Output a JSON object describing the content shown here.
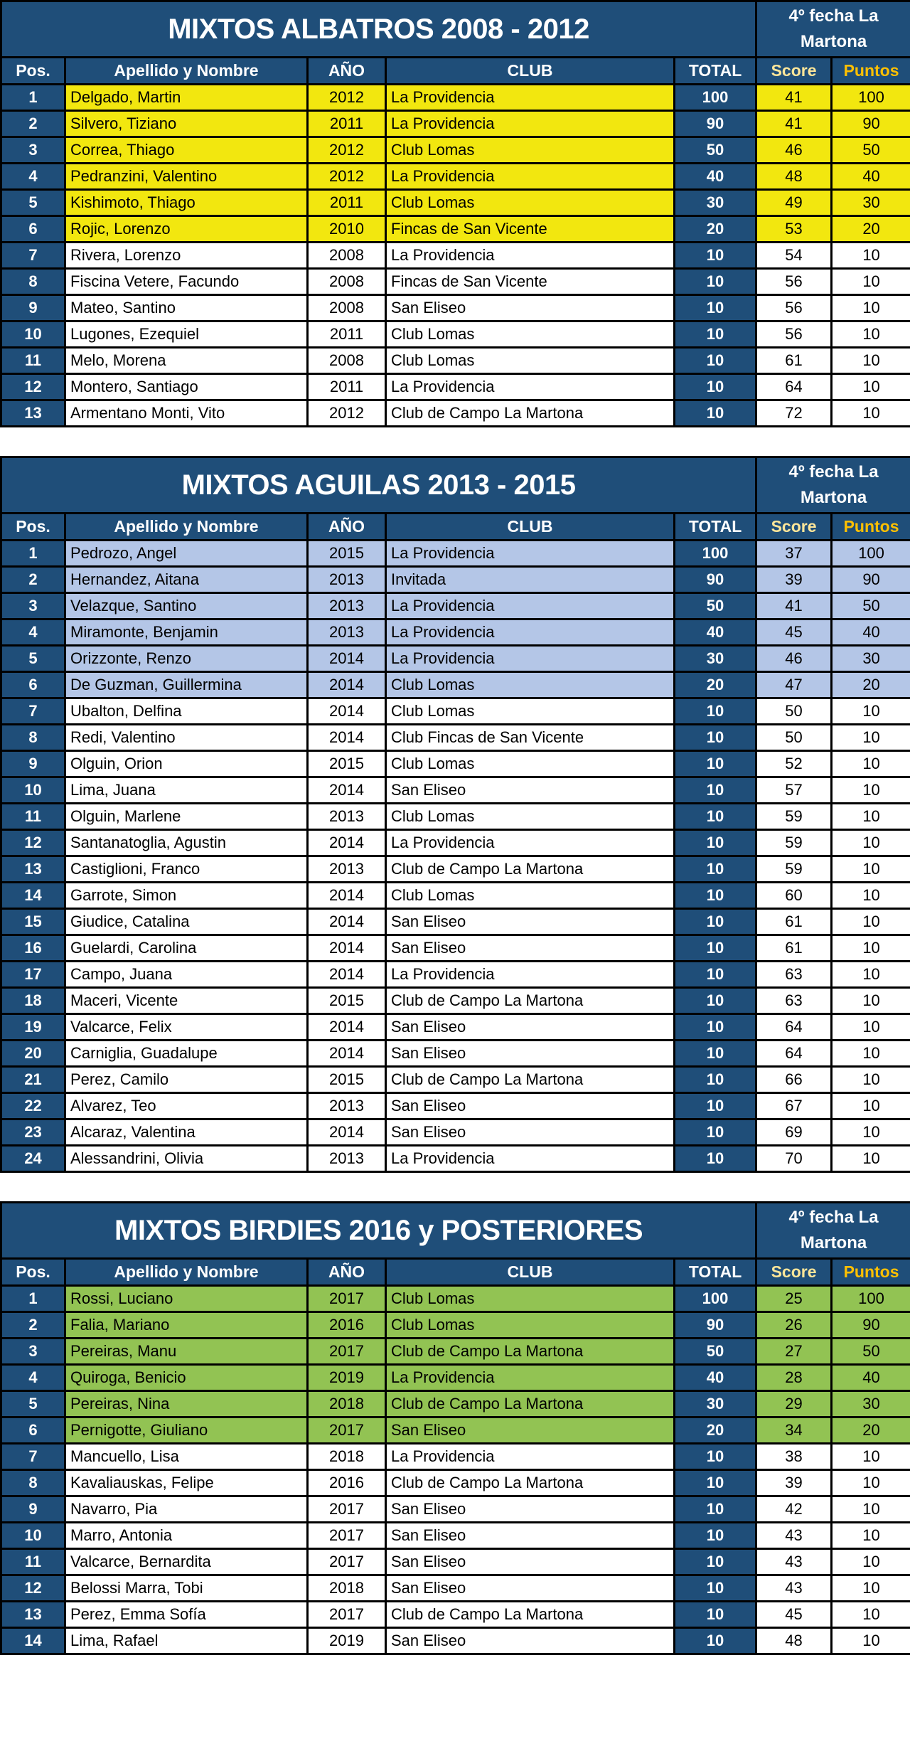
{
  "headers": {
    "pos": "Pos.",
    "name": "Apellido y Nombre",
    "year": "AÑO",
    "club": "CLUB",
    "total": "TOTAL",
    "score": "Score",
    "puntos": "Puntos"
  },
  "colors": {
    "navy": "#1f4e79",
    "albatros_highlight": "#f2e70f",
    "aguilas_highlight": "#b4c6e7",
    "birdies_highlight": "#92c353",
    "score_header": "#ffe699",
    "puntos_header": "#ffc000"
  },
  "tables": [
    {
      "title": "MIXTOS ALBATROS 2008 - 2012",
      "fecha": "4º fecha La Martona",
      "highlight": "#f2e70f",
      "rows": [
        [
          "1",
          "Delgado, Martin",
          "2012",
          "La Providencia",
          "100",
          "41",
          "100"
        ],
        [
          "2",
          "Silvero, Tiziano",
          "2011",
          "La Providencia",
          "90",
          "41",
          "90"
        ],
        [
          "3",
          "Correa, Thiago",
          "2012",
          "Club Lomas",
          "50",
          "46",
          "50"
        ],
        [
          "4",
          "Pedranzini, Valentino",
          "2012",
          "La Providencia",
          "40",
          "48",
          "40"
        ],
        [
          "5",
          "Kishimoto, Thiago",
          "2011",
          "Club Lomas",
          "30",
          "49",
          "30"
        ],
        [
          "6",
          "Rojic, Lorenzo",
          "2010",
          "Fincas de San Vicente",
          "20",
          "53",
          "20"
        ],
        [
          "7",
          "Rivera, Lorenzo",
          "2008",
          "La Providencia",
          "10",
          "54",
          "10"
        ],
        [
          "8",
          "Fiscina Vetere, Facundo",
          "2008",
          "Fincas de San Vicente",
          "10",
          "56",
          "10"
        ],
        [
          "9",
          "Mateo, Santino",
          "2008",
          "San Eliseo",
          "10",
          "56",
          "10"
        ],
        [
          "10",
          "Lugones, Ezequiel",
          "2011",
          "Club Lomas",
          "10",
          "56",
          "10"
        ],
        [
          "11",
          "Melo, Morena",
          "2008",
          "Club Lomas",
          "10",
          "61",
          "10"
        ],
        [
          "12",
          "Montero, Santiago",
          "2011",
          "La Providencia",
          "10",
          "64",
          "10"
        ],
        [
          "13",
          "Armentano Monti, Vito",
          "2012",
          "Club de Campo La Martona",
          "10",
          "72",
          "10"
        ]
      ]
    },
    {
      "title": "MIXTOS AGUILAS 2013 - 2015",
      "fecha": "4º fecha La Martona",
      "highlight": "#b4c6e7",
      "rows": [
        [
          "1",
          "Pedrozo, Angel",
          "2015",
          "La Providencia",
          "100",
          "37",
          "100"
        ],
        [
          "2",
          "Hernandez, Aitana",
          "2013",
          "Invitada",
          "90",
          "39",
          "90"
        ],
        [
          "3",
          "Velazque, Santino",
          "2013",
          "La Providencia",
          "50",
          "41",
          "50"
        ],
        [
          "4",
          "Miramonte, Benjamin",
          "2013",
          "La Providencia",
          "40",
          "45",
          "40"
        ],
        [
          "5",
          "Orizzonte, Renzo",
          "2014",
          "La Providencia",
          "30",
          "46",
          "30"
        ],
        [
          "6",
          "De Guzman, Guillermina",
          "2014",
          "Club Lomas",
          "20",
          "47",
          "20"
        ],
        [
          "7",
          "Ubalton, Delfina",
          "2014",
          "Club Lomas",
          "10",
          "50",
          "10"
        ],
        [
          "8",
          "Redi, Valentino",
          "2014",
          "Club Fincas de San Vicente",
          "10",
          "50",
          "10"
        ],
        [
          "9",
          "Olguin, Orion",
          "2015",
          "Club Lomas",
          "10",
          "52",
          "10"
        ],
        [
          "10",
          "Lima, Juana",
          "2014",
          "San Eliseo",
          "10",
          "57",
          "10"
        ],
        [
          "11",
          "Olguin, Marlene",
          "2013",
          "Club Lomas",
          "10",
          "59",
          "10"
        ],
        [
          "12",
          "Santanatoglia, Agustin",
          "2014",
          "La Providencia",
          "10",
          "59",
          "10"
        ],
        [
          "13",
          "Castiglioni, Franco",
          "2013",
          "Club de Campo La Martona",
          "10",
          "59",
          "10"
        ],
        [
          "14",
          "Garrote, Simon",
          "2014",
          "Club Lomas",
          "10",
          "60",
          "10"
        ],
        [
          "15",
          "Giudice, Catalina",
          "2014",
          "San Eliseo",
          "10",
          "61",
          "10"
        ],
        [
          "16",
          "Guelardi, Carolina",
          "2014",
          "San Eliseo",
          "10",
          "61",
          "10"
        ],
        [
          "17",
          "Campo, Juana",
          "2014",
          "La Providencia",
          "10",
          "63",
          "10"
        ],
        [
          "18",
          "Maceri, Vicente",
          "2015",
          "Club de Campo La Martona",
          "10",
          "63",
          "10"
        ],
        [
          "19",
          "Valcarce, Felix",
          "2014",
          "San Eliseo",
          "10",
          "64",
          "10"
        ],
        [
          "20",
          "Carniglia, Guadalupe",
          "2014",
          "San Eliseo",
          "10",
          "64",
          "10"
        ],
        [
          "21",
          "Perez, Camilo",
          "2015",
          "Club de Campo La Martona",
          "10",
          "66",
          "10"
        ],
        [
          "22",
          "Alvarez, Teo",
          "2013",
          "San Eliseo",
          "10",
          "67",
          "10"
        ],
        [
          "23",
          "Alcaraz, Valentina",
          "2014",
          "San Eliseo",
          "10",
          "69",
          "10"
        ],
        [
          "24",
          "Alessandrini, Olivia",
          "2013",
          "La Providencia",
          "10",
          "70",
          "10"
        ]
      ]
    },
    {
      "title": "MIXTOS BIRDIES 2016 y POSTERIORES",
      "fecha": "4º fecha La Martona",
      "highlight": "#92c353",
      "rows": [
        [
          "1",
          "Rossi, Luciano",
          "2017",
          "Club Lomas",
          "100",
          "25",
          "100"
        ],
        [
          "2",
          "Falia, Mariano",
          "2016",
          "Club Lomas",
          "90",
          "26",
          "90"
        ],
        [
          "3",
          "Pereiras, Manu",
          "2017",
          "Club de Campo La Martona",
          "50",
          "27",
          "50"
        ],
        [
          "4",
          "Quiroga, Benicio",
          "2019",
          "La Providencia",
          "40",
          "28",
          "40"
        ],
        [
          "5",
          "Pereiras, Nina",
          "2018",
          "Club de Campo La Martona",
          "30",
          "29",
          "30"
        ],
        [
          "6",
          "Pernigotte, Giuliano",
          "2017",
          "San Eliseo",
          "20",
          "34",
          "20"
        ],
        [
          "7",
          "Mancuello, Lisa",
          "2018",
          "La Providencia",
          "10",
          "38",
          "10"
        ],
        [
          "8",
          "Kavaliauskas, Felipe",
          "2016",
          "Club de Campo La Martona",
          "10",
          "39",
          "10"
        ],
        [
          "9",
          "Navarro, Pia",
          "2017",
          "San Eliseo",
          "10",
          "42",
          "10"
        ],
        [
          "10",
          "Marro, Antonia",
          "2017",
          "San Eliseo",
          "10",
          "43",
          "10"
        ],
        [
          "11",
          "Valcarce, Bernardita",
          "2017",
          "San Eliseo",
          "10",
          "43",
          "10"
        ],
        [
          "12",
          "Belossi Marra, Tobi",
          "2018",
          "San Eliseo",
          "10",
          "43",
          "10"
        ],
        [
          "13",
          "Perez, Emma Sofía",
          "2017",
          "Club de Campo La Martona",
          "10",
          "45",
          "10"
        ],
        [
          "14",
          "Lima, Rafael",
          "2019",
          "San Eliseo",
          "10",
          "48",
          "10"
        ]
      ]
    }
  ]
}
